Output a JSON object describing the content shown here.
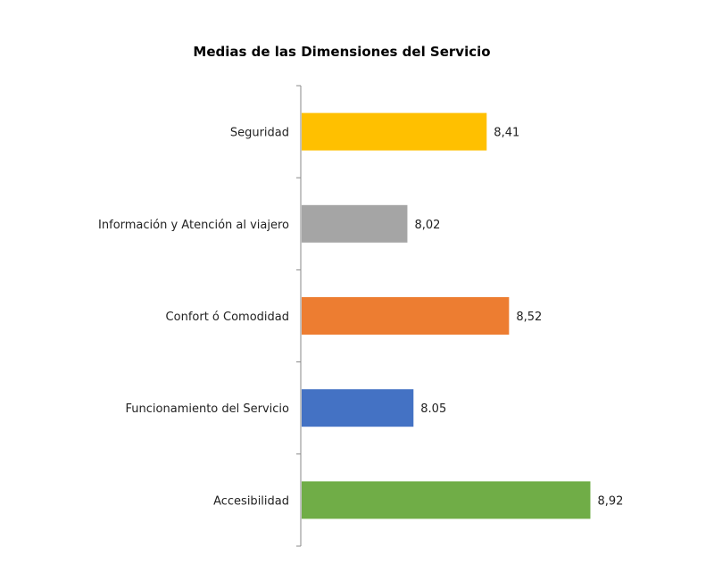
{
  "chart_data": {
    "type": "bar",
    "orientation": "horizontal",
    "title": "Medias de las Dimensiones del Servicio",
    "xlabel": "",
    "ylabel": "",
    "xlim": [
      7.5,
      9.0
    ],
    "grid": false,
    "legend": "none",
    "categories": [
      "Seguridad",
      "Información y Atención al viajero",
      "Confort ó Comodidad",
      "Funcionamiento del Servicio",
      "Accesibilidad"
    ],
    "values": [
      8.41,
      8.02,
      8.52,
      8.05,
      8.92
    ],
    "data_labels": [
      "8,41",
      "8,02",
      "8,52",
      "8.05",
      "8,92"
    ],
    "colors": [
      "#FFC000",
      "#A5A5A5",
      "#ED7D31",
      "#4472C4",
      "#70AD47"
    ]
  }
}
